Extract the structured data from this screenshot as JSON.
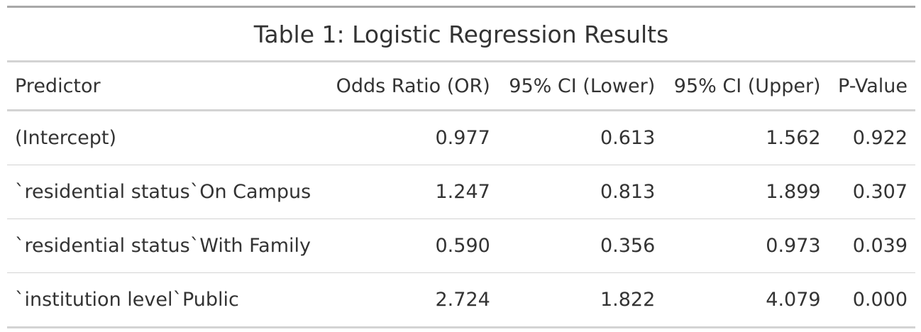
{
  "table": {
    "title": "Table 1: Logistic Regression Results",
    "columns": [
      "Predictor",
      "Odds Ratio (OR)",
      "95% CI (Lower)",
      "95% CI (Upper)",
      "P-Value"
    ],
    "rows": [
      [
        "(Intercept)",
        "0.977",
        "0.613",
        "1.562",
        "0.922"
      ],
      [
        "`residential status`On Campus",
        "1.247",
        "0.813",
        "1.899",
        "0.307"
      ],
      [
        "`residential status`With Family",
        "0.590",
        "0.356",
        "0.973",
        "0.039"
      ],
      [
        "`institution level`Public",
        "2.724",
        "1.822",
        "4.079",
        "0.000"
      ]
    ]
  }
}
